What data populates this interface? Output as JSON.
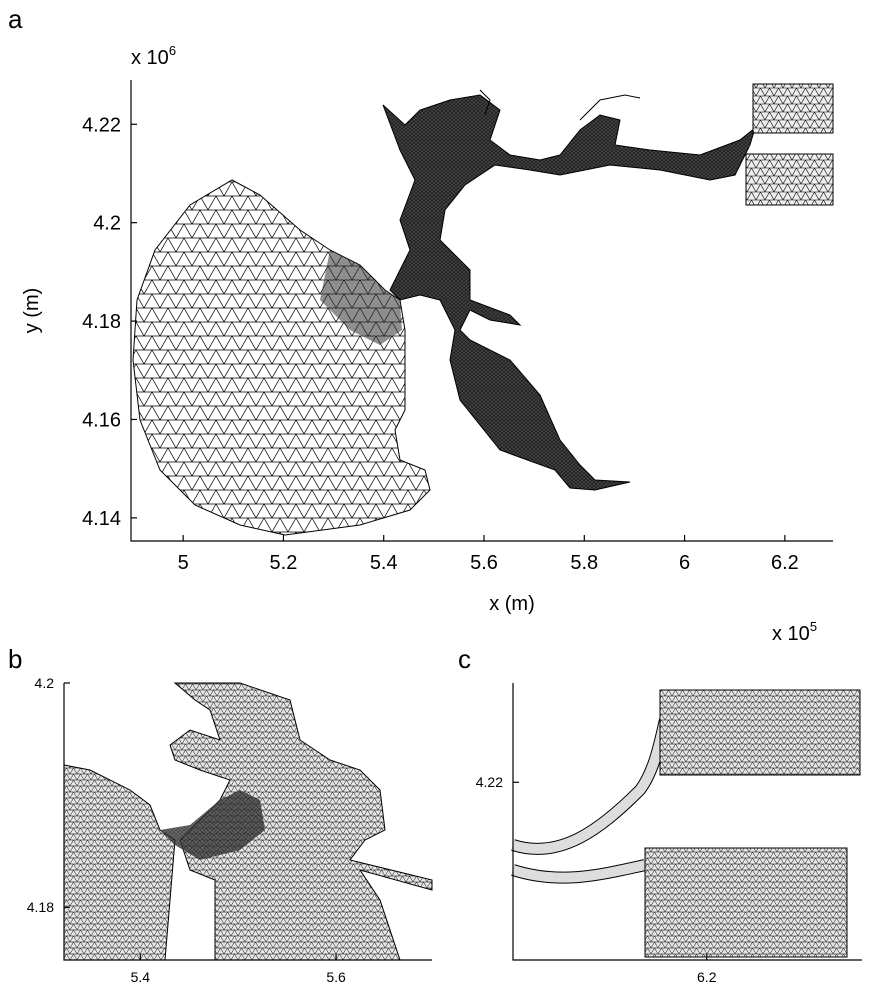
{
  "chart_data": [
    {
      "type": "mesh",
      "panel": "a",
      "xlabel": "x (m)",
      "ylabel": "y (m)",
      "x_multiplier": "x 10",
      "x_exponent": "5",
      "y_multiplier": "x 10",
      "y_exponent": "6",
      "xlim": [
        4.896,
        6.296
      ],
      "ylim": [
        4.1353,
        4.229
      ],
      "xticks": [
        5,
        5.2,
        5.4,
        5.6,
        5.8,
        6,
        6.2
      ],
      "yticks": [
        4.14,
        4.16,
        4.18,
        4.2,
        4.22
      ]
    },
    {
      "type": "mesh",
      "panel": "b",
      "xlim": [
        5.322,
        5.698
      ],
      "ylim": [
        4.1753,
        4.2
      ],
      "xticks": [
        5.4,
        5.6
      ],
      "yticks": [
        4.18,
        4.2
      ]
    },
    {
      "type": "mesh",
      "panel": "c",
      "xlim": [
        6.044,
        6.325
      ],
      "ylim": [
        4.1978,
        4.2324
      ],
      "xticks": [
        6.2
      ],
      "yticks": [
        4.22
      ]
    }
  ]
}
